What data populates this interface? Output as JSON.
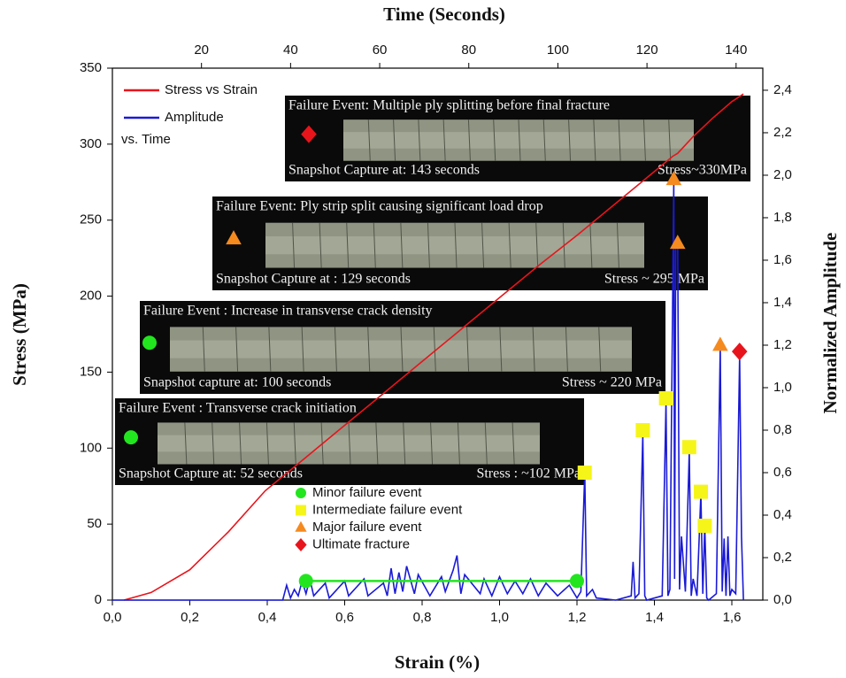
{
  "chart_data": {
    "type": "line",
    "title": "Time (Seconds)",
    "x_label": "Strain (%)",
    "y_label": "Stress (MPa)",
    "y2_label": "Normalized Amplitude",
    "xlim": [
      0,
      1.68
    ],
    "xticks": [
      {
        "value": 0,
        "label": "0,0"
      },
      {
        "value": 0.2,
        "label": "0,2"
      },
      {
        "value": 0.4,
        "label": "0,4"
      },
      {
        "value": 0.6,
        "label": "0,6"
      },
      {
        "value": 0.8,
        "label": "0,8"
      },
      {
        "value": 1.0,
        "label": "1,0"
      },
      {
        "value": 1.2,
        "label": "1,2"
      },
      {
        "value": 1.4,
        "label": "1,4"
      },
      {
        "value": 1.6,
        "label": "1,6"
      }
    ],
    "x2lim": [
      0,
      146
    ],
    "x2ticks": [
      20,
      40,
      60,
      80,
      100,
      120,
      140
    ],
    "ylim": [
      0,
      350
    ],
    "yticks": [
      0,
      50,
      100,
      150,
      200,
      250,
      300,
      350
    ],
    "y2lim": [
      0,
      2.504
    ],
    "y2ticks": [
      {
        "value": 0,
        "label": "0,0"
      },
      {
        "value": 0.2,
        "label": "0,2"
      },
      {
        "value": 0.4,
        "label": "0,4"
      },
      {
        "value": 0.6,
        "label": "0,6"
      },
      {
        "value": 0.8,
        "label": "0,8"
      },
      {
        "value": 1.0,
        "label": "1,0"
      },
      {
        "value": 1.2,
        "label": "1,2"
      },
      {
        "value": 1.4,
        "label": "1,4"
      },
      {
        "value": 1.6,
        "label": "1,6"
      },
      {
        "value": 1.8,
        "label": "1,8"
      },
      {
        "value": 2.0,
        "label": "2,0"
      },
      {
        "value": 2.2,
        "label": "2,2"
      },
      {
        "value": 2.4,
        "label": "2,4"
      }
    ],
    "legend_note": "vs. Time",
    "series": [
      {
        "name": "Stress vs Strain",
        "color": "#e8141b",
        "style": "line",
        "x": [
          0.03,
          0.1,
          0.2,
          0.3,
          0.395,
          0.5,
          0.6,
          0.7,
          0.8,
          0.9,
          1.0,
          1.1,
          1.2,
          1.3,
          1.4,
          1.447,
          1.46,
          1.5,
          1.55,
          1.6,
          1.63
        ],
        "values": [
          0,
          5,
          20,
          45,
          72,
          94,
          115,
          136,
          157,
          178,
          199,
          220,
          240,
          261,
          282,
          292,
          294,
          305,
          317,
          328,
          333
        ]
      },
      {
        "name": "Amplitude",
        "color": "#1a1ad6",
        "style": "line",
        "axis": "y2",
        "x": [
          0,
          0.44,
          0.45,
          0.46,
          0.47,
          0.48,
          0.49,
          0.5,
          0.51,
          0.52,
          0.55,
          0.56,
          0.6,
          0.61,
          0.65,
          0.66,
          0.7,
          0.71,
          0.72,
          0.73,
          0.74,
          0.75,
          0.76,
          0.78,
          0.79,
          0.82,
          0.85,
          0.86,
          0.88,
          0.89,
          0.9,
          0.91,
          0.95,
          0.96,
          0.98,
          1.0,
          1.02,
          1.04,
          1.06,
          1.08,
          1.1,
          1.12,
          1.15,
          1.18,
          1.2,
          1.21,
          1.22,
          1.225,
          1.24,
          1.25,
          1.3,
          1.34,
          1.345,
          1.35,
          1.36,
          1.37,
          1.375,
          1.38,
          1.42,
          1.43,
          1.435,
          1.44,
          1.45,
          1.452,
          1.455,
          1.46,
          1.465,
          1.47,
          1.48,
          1.49,
          1.495,
          1.5,
          1.51,
          1.52,
          1.525,
          1.53,
          1.535,
          1.54,
          1.56,
          1.57,
          1.575,
          1.58,
          1.585,
          1.59,
          1.595,
          1.6,
          1.61,
          1.62,
          1.625,
          1.63
        ],
        "values": [
          0,
          0,
          0.07,
          0.01,
          0.05,
          0.02,
          0.09,
          0.03,
          0.1,
          0.02,
          0.08,
          0.01,
          0.09,
          0.02,
          0.1,
          0.02,
          0.08,
          0.02,
          0.15,
          0.03,
          0.13,
          0.04,
          0.16,
          0.03,
          0.12,
          0.02,
          0.11,
          0.04,
          0.14,
          0.21,
          0.03,
          0.12,
          0.03,
          0.1,
          0.02,
          0.11,
          0.03,
          0.09,
          0.03,
          0.1,
          0.02,
          0.08,
          0.02,
          0.07,
          0.01,
          0.04,
          0.6,
          0.02,
          0.05,
          0.01,
          0,
          0.02,
          0.18,
          0.01,
          0.03,
          0.78,
          0.02,
          0,
          0.02,
          0.93,
          0.02,
          0.05,
          1.98,
          0.1,
          1.7,
          1.68,
          0.05,
          0.3,
          0.04,
          0.7,
          0.02,
          0.1,
          0.02,
          0.5,
          0.03,
          0.35,
          0.01,
          0,
          0.03,
          1.19,
          0.04,
          0.29,
          0.02,
          0.3,
          0.02,
          0.05,
          0.03,
          1.15,
          0.3,
          0
        ]
      },
      {
        "name": "Minor failure event",
        "color": "#22e51f",
        "style": "circle",
        "connect": true,
        "axis": "y2",
        "x": [
          0.5,
          1.2
        ],
        "values": [
          0.09,
          0.09
        ]
      },
      {
        "name": "Intermediate failure event",
        "color": "#f5f51a",
        "style": "square",
        "axis": "y2",
        "x": [
          1.22,
          1.37,
          1.43,
          1.49,
          1.52,
          1.53
        ],
        "values": [
          0.6,
          0.8,
          0.95,
          0.72,
          0.51,
          0.35
        ]
      },
      {
        "name": "Major failure event",
        "color": "#f58a1f",
        "style": "triangle",
        "axis": "y2",
        "x": [
          1.45,
          1.46,
          1.57
        ],
        "values": [
          1.98,
          1.68,
          1.2
        ]
      },
      {
        "name": "Ultimate fracture",
        "color": "#e8141b",
        "style": "diamond",
        "axis": "y2",
        "x": [
          1.62
        ],
        "values": [
          1.17
        ]
      }
    ],
    "annotations": [
      {
        "title": "Failure Event: Multiple ply splitting before final fracture",
        "capture": "Snapshot Capture at: 143 seconds",
        "stress": "Stress~330MPa",
        "event": 5
      },
      {
        "title": "Failure Event: Ply strip split causing significant load drop",
        "capture": "Snapshot Capture at : 129 seconds",
        "stress": "Stress ~ 295 MPa",
        "event": 4
      },
      {
        "title": "Failure Event : Increase in transverse crack density",
        "capture": "Snapshot capture at: 100 seconds",
        "stress": "Stress ~ 220 MPa",
        "event": 2
      },
      {
        "title": "Failure Event :  Transverse crack initiation",
        "capture": "Snapshot Capture at: 52 seconds",
        "stress": "Stress : ~102 MPa",
        "event": 2
      }
    ]
  }
}
